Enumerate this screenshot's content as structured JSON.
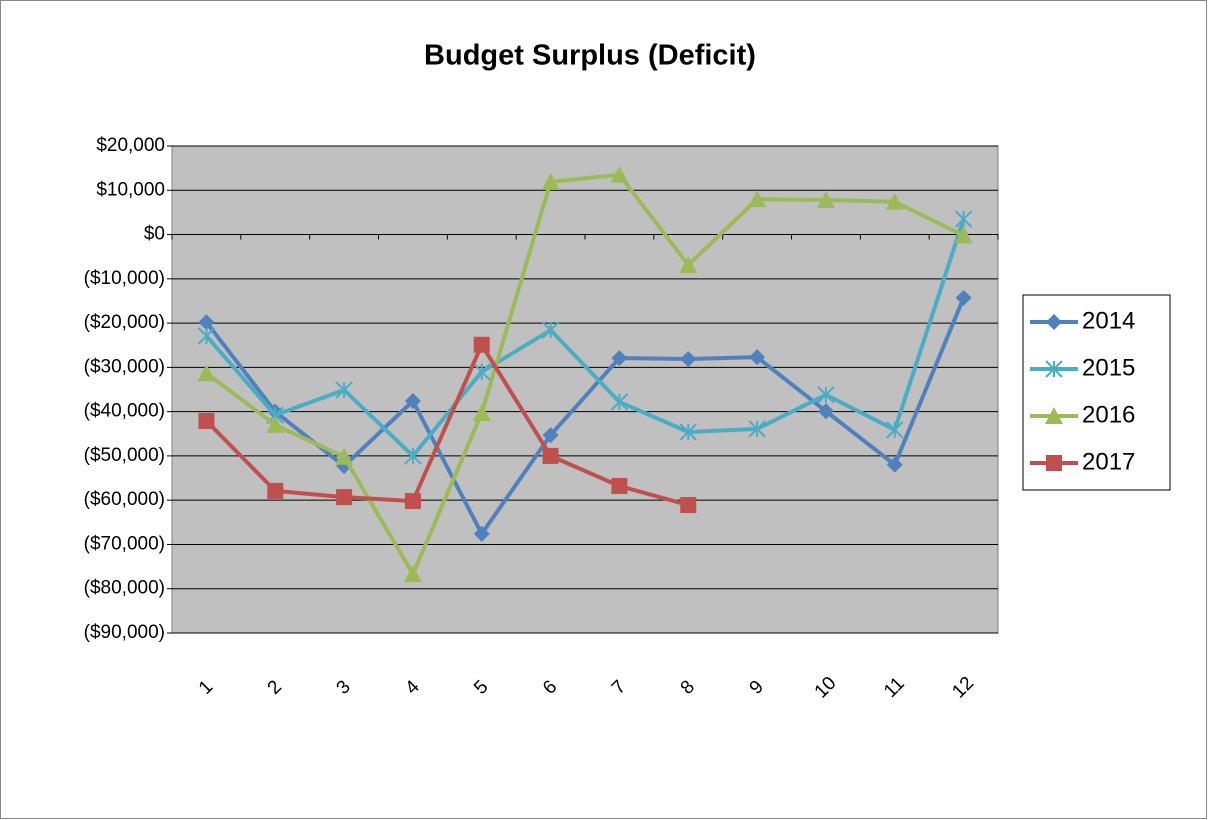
{
  "chart_data": {
    "type": "line",
    "title": "Budget Surplus (Deficit)",
    "categories": [
      "1",
      "2",
      "3",
      "4",
      "5",
      "6",
      "7",
      "8",
      "9",
      "10",
      "11",
      "12"
    ],
    "series": [
      {
        "name": "2014",
        "color": "#4f81bd",
        "marker": "diamond",
        "values": [
          -19800,
          -40000,
          -52300,
          -37600,
          -67600,
          -45300,
          -27900,
          -28100,
          -27700,
          -39900,
          -52000,
          -14300
        ]
      },
      {
        "name": "2015",
        "color": "#4bacc6",
        "marker": "asterisk",
        "values": [
          -22900,
          -40800,
          -35100,
          -50000,
          -31000,
          -21600,
          -37800,
          -44600,
          -43900,
          -36200,
          -44100,
          3500
        ]
      },
      {
        "name": "2016",
        "color": "#9bbb59",
        "marker": "triangle",
        "values": [
          -31300,
          -43000,
          -50200,
          -76700,
          -40300,
          11900,
          13500,
          -6900,
          8000,
          7800,
          7400,
          -200
        ]
      },
      {
        "name": "2017",
        "color": "#c0504d",
        "marker": "square",
        "values": [
          -42100,
          -57900,
          -59300,
          -60200,
          -24900,
          -50000,
          -56800,
          -61100,
          null,
          null,
          null,
          null
        ]
      }
    ],
    "ylim": [
      -90000,
      20000
    ],
    "yticks": [
      {
        "value": 20000,
        "label": "$20,000"
      },
      {
        "value": 10000,
        "label": "$10,000"
      },
      {
        "value": 0,
        "label": "$0"
      },
      {
        "value": -10000,
        "label": "($10,000)"
      },
      {
        "value": -20000,
        "label": "($20,000)"
      },
      {
        "value": -30000,
        "label": "($30,000)"
      },
      {
        "value": -40000,
        "label": "($40,000)"
      },
      {
        "value": -50000,
        "label": "($50,000)"
      },
      {
        "value": -60000,
        "label": "($60,000)"
      },
      {
        "value": -70000,
        "label": "($70,000)"
      },
      {
        "value": -80000,
        "label": "($80,000)"
      },
      {
        "value": -90000,
        "label": "($90,000)"
      }
    ],
    "grid": true,
    "legend": "right",
    "plot_background": "#c0c0c0"
  }
}
